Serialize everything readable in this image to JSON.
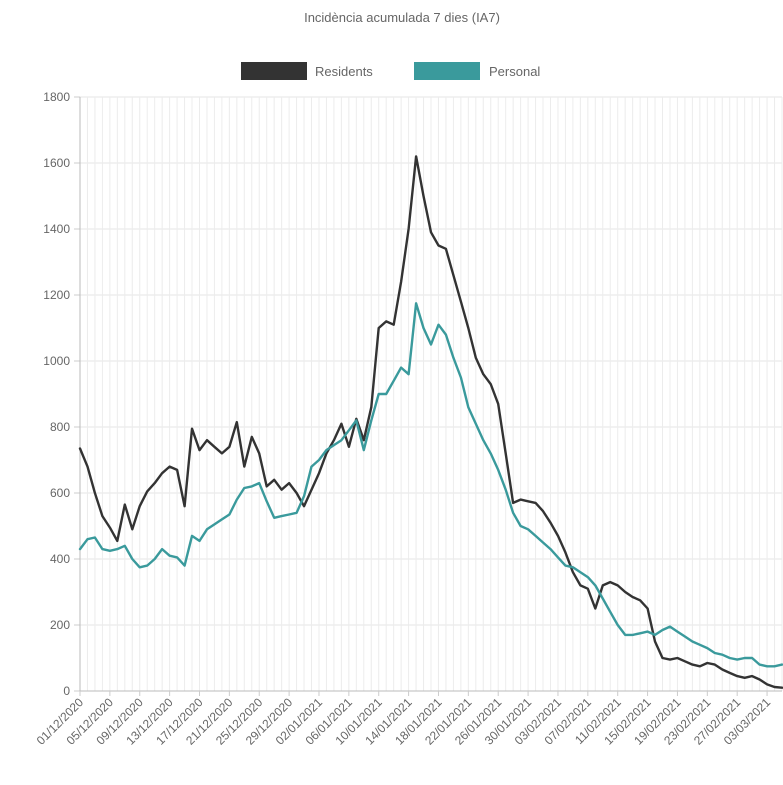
{
  "chart_data": {
    "type": "line",
    "title": "Incidència acumulada 7 dies (IA7)",
    "xlabel": "",
    "ylabel": "",
    "ylim": [
      0,
      1800
    ],
    "yticks": [
      0,
      200,
      400,
      600,
      800,
      1000,
      1200,
      1400,
      1600,
      1800
    ],
    "grid": true,
    "legend_position": "top",
    "x_start": "01/12/2020",
    "x_end": "05/03/2021",
    "xtick_labels": [
      "01/12/2020",
      "05/12/2020",
      "09/12/2020",
      "13/12/2020",
      "17/12/2020",
      "21/12/2020",
      "25/12/2020",
      "29/12/2020",
      "02/01/2021",
      "06/01/2021",
      "10/01/2021",
      "14/01/2021",
      "18/01/2021",
      "22/01/2021",
      "26/01/2021",
      "30/01/2021",
      "03/02/2021",
      "07/02/2021",
      "11/02/2021",
      "15/02/2021",
      "19/02/2021",
      "23/02/2021",
      "27/02/2021",
      "03/03/2021"
    ],
    "series": [
      {
        "name": "Residents",
        "color": "#333333",
        "points": [
          [
            "01/12/2020",
            735
          ],
          [
            "02/12/2020",
            680
          ],
          [
            "03/12/2020",
            600
          ],
          [
            "04/12/2020",
            530
          ],
          [
            "05/12/2020",
            495
          ],
          [
            "06/12/2020",
            455
          ],
          [
            "07/12/2020",
            565
          ],
          [
            "08/12/2020",
            490
          ],
          [
            "09/12/2020",
            560
          ],
          [
            "10/12/2020",
            605
          ],
          [
            "11/12/2020",
            630
          ],
          [
            "12/12/2020",
            660
          ],
          [
            "13/12/2020",
            680
          ],
          [
            "14/12/2020",
            670
          ],
          [
            "15/12/2020",
            560
          ],
          [
            "16/12/2020",
            795
          ],
          [
            "17/12/2020",
            730
          ],
          [
            "18/12/2020",
            760
          ],
          [
            "19/12/2020",
            740
          ],
          [
            "20/12/2020",
            720
          ],
          [
            "21/12/2020",
            740
          ],
          [
            "22/12/2020",
            815
          ],
          [
            "23/12/2020",
            680
          ],
          [
            "24/12/2020",
            770
          ],
          [
            "25/12/2020",
            720
          ],
          [
            "26/12/2020",
            620
          ],
          [
            "27/12/2020",
            640
          ],
          [
            "28/12/2020",
            610
          ],
          [
            "29/12/2020",
            630
          ],
          [
            "30/12/2020",
            600
          ],
          [
            "31/12/2020",
            560
          ],
          [
            "01/01/2021",
            610
          ],
          [
            "02/01/2021",
            660
          ],
          [
            "03/01/2021",
            720
          ],
          [
            "04/01/2021",
            760
          ],
          [
            "05/01/2021",
            810
          ],
          [
            "06/01/2021",
            740
          ],
          [
            "07/01/2021",
            825
          ],
          [
            "08/01/2021",
            760
          ],
          [
            "09/01/2021",
            860
          ],
          [
            "10/01/2021",
            1100
          ],
          [
            "11/01/2021",
            1120
          ],
          [
            "12/01/2021",
            1110
          ],
          [
            "13/01/2021",
            1240
          ],
          [
            "14/01/2021",
            1400
          ],
          [
            "15/01/2021",
            1620
          ],
          [
            "16/01/2021",
            1500
          ],
          [
            "17/01/2021",
            1390
          ],
          [
            "18/01/2021",
            1350
          ],
          [
            "19/01/2021",
            1340
          ],
          [
            "20/01/2021",
            1260
          ],
          [
            "21/01/2021",
            1180
          ],
          [
            "22/01/2021",
            1100
          ],
          [
            "23/01/2021",
            1010
          ],
          [
            "24/01/2021",
            960
          ],
          [
            "25/01/2021",
            930
          ],
          [
            "26/01/2021",
            870
          ],
          [
            "27/01/2021",
            720
          ],
          [
            "28/01/2021",
            570
          ],
          [
            "29/01/2021",
            580
          ],
          [
            "30/01/2021",
            575
          ],
          [
            "31/01/2021",
            570
          ],
          [
            "01/02/2021",
            545
          ],
          [
            "02/02/2021",
            510
          ],
          [
            "03/02/2021",
            470
          ],
          [
            "04/02/2021",
            420
          ],
          [
            "05/02/2021",
            360
          ],
          [
            "06/02/2021",
            320
          ],
          [
            "07/02/2021",
            310
          ],
          [
            "08/02/2021",
            250
          ],
          [
            "09/02/2021",
            320
          ],
          [
            "10/02/2021",
            330
          ],
          [
            "11/02/2021",
            320
          ],
          [
            "12/02/2021",
            300
          ],
          [
            "13/02/2021",
            285
          ],
          [
            "14/02/2021",
            275
          ],
          [
            "15/02/2021",
            250
          ],
          [
            "16/02/2021",
            150
          ],
          [
            "17/02/2021",
            100
          ],
          [
            "18/02/2021",
            95
          ],
          [
            "19/02/2021",
            100
          ],
          [
            "20/02/2021",
            90
          ],
          [
            "21/02/2021",
            80
          ],
          [
            "22/02/2021",
            75
          ],
          [
            "23/02/2021",
            85
          ],
          [
            "24/02/2021",
            80
          ],
          [
            "25/02/2021",
            65
          ],
          [
            "26/02/2021",
            55
          ],
          [
            "27/02/2021",
            45
          ],
          [
            "28/02/2021",
            40
          ],
          [
            "01/03/2021",
            45
          ],
          [
            "02/03/2021",
            35
          ],
          [
            "03/03/2021",
            20
          ],
          [
            "04/03/2021",
            12
          ],
          [
            "05/03/2021",
            10
          ]
        ]
      },
      {
        "name": "Personal",
        "color": "#3a9a9c",
        "points": [
          [
            "01/12/2020",
            430
          ],
          [
            "02/12/2020",
            460
          ],
          [
            "03/12/2020",
            465
          ],
          [
            "04/12/2020",
            430
          ],
          [
            "05/12/2020",
            425
          ],
          [
            "06/12/2020",
            430
          ],
          [
            "07/12/2020",
            440
          ],
          [
            "08/12/2020",
            400
          ],
          [
            "09/12/2020",
            375
          ],
          [
            "10/12/2020",
            380
          ],
          [
            "11/12/2020",
            400
          ],
          [
            "12/12/2020",
            430
          ],
          [
            "13/12/2020",
            410
          ],
          [
            "14/12/2020",
            405
          ],
          [
            "15/12/2020",
            380
          ],
          [
            "16/12/2020",
            470
          ],
          [
            "17/12/2020",
            455
          ],
          [
            "18/12/2020",
            490
          ],
          [
            "19/12/2020",
            505
          ],
          [
            "20/12/2020",
            520
          ],
          [
            "21/12/2020",
            535
          ],
          [
            "22/12/2020",
            580
          ],
          [
            "23/12/2020",
            615
          ],
          [
            "24/12/2020",
            620
          ],
          [
            "25/12/2020",
            630
          ],
          [
            "26/12/2020",
            575
          ],
          [
            "27/12/2020",
            525
          ],
          [
            "28/12/2020",
            530
          ],
          [
            "29/12/2020",
            535
          ],
          [
            "30/12/2020",
            540
          ],
          [
            "31/12/2020",
            590
          ],
          [
            "01/01/2021",
            680
          ],
          [
            "02/01/2021",
            700
          ],
          [
            "03/01/2021",
            730
          ],
          [
            "04/01/2021",
            745
          ],
          [
            "05/01/2021",
            760
          ],
          [
            "06/01/2021",
            790
          ],
          [
            "07/01/2021",
            820
          ],
          [
            "08/01/2021",
            730
          ],
          [
            "09/01/2021",
            820
          ],
          [
            "10/01/2021",
            900
          ],
          [
            "11/01/2021",
            900
          ],
          [
            "12/01/2021",
            940
          ],
          [
            "13/01/2021",
            980
          ],
          [
            "14/01/2021",
            960
          ],
          [
            "15/01/2021",
            1175
          ],
          [
            "16/01/2021",
            1100
          ],
          [
            "17/01/2021",
            1050
          ],
          [
            "18/01/2021",
            1110
          ],
          [
            "19/01/2021",
            1080
          ],
          [
            "20/01/2021",
            1010
          ],
          [
            "21/01/2021",
            950
          ],
          [
            "22/01/2021",
            860
          ],
          [
            "23/01/2021",
            810
          ],
          [
            "24/01/2021",
            760
          ],
          [
            "25/01/2021",
            720
          ],
          [
            "26/01/2021",
            670
          ],
          [
            "27/01/2021",
            610
          ],
          [
            "28/01/2021",
            540
          ],
          [
            "29/01/2021",
            500
          ],
          [
            "30/01/2021",
            490
          ],
          [
            "31/01/2021",
            470
          ],
          [
            "01/02/2021",
            450
          ],
          [
            "02/02/2021",
            430
          ],
          [
            "03/02/2021",
            405
          ],
          [
            "04/02/2021",
            380
          ],
          [
            "05/02/2021",
            375
          ],
          [
            "06/02/2021",
            360
          ],
          [
            "07/02/2021",
            345
          ],
          [
            "08/02/2021",
            320
          ],
          [
            "09/02/2021",
            280
          ],
          [
            "10/02/2021",
            240
          ],
          [
            "11/02/2021",
            200
          ],
          [
            "12/02/2021",
            170
          ],
          [
            "13/02/2021",
            170
          ],
          [
            "14/02/2021",
            175
          ],
          [
            "15/02/2021",
            180
          ],
          [
            "16/02/2021",
            170
          ],
          [
            "17/02/2021",
            185
          ],
          [
            "18/02/2021",
            195
          ],
          [
            "19/02/2021",
            180
          ],
          [
            "20/02/2021",
            165
          ],
          [
            "21/02/2021",
            150
          ],
          [
            "22/02/2021",
            140
          ],
          [
            "23/02/2021",
            130
          ],
          [
            "24/02/2021",
            115
          ],
          [
            "25/02/2021",
            110
          ],
          [
            "26/02/2021",
            100
          ],
          [
            "27/02/2021",
            95
          ],
          [
            "28/02/2021",
            100
          ],
          [
            "01/03/2021",
            100
          ],
          [
            "02/03/2021",
            80
          ],
          [
            "03/03/2021",
            75
          ],
          [
            "04/03/2021",
            75
          ],
          [
            "05/03/2021",
            80
          ]
        ]
      }
    ]
  }
}
